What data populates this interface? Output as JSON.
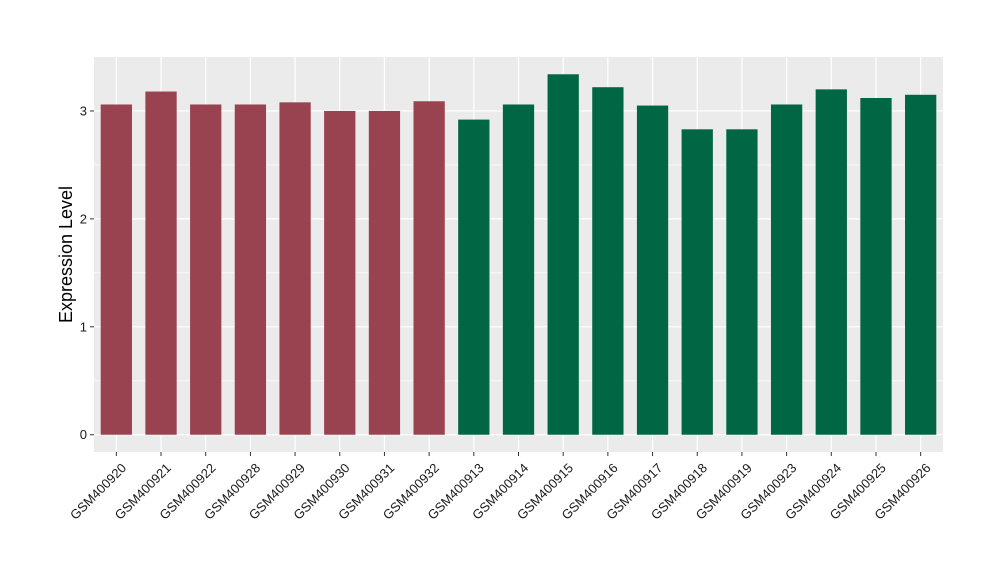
{
  "chart_data": {
    "type": "bar",
    "title": "",
    "xlabel": "",
    "ylabel": "Expression Level",
    "ylim": [
      -0.16,
      3.5
    ],
    "yticks": [
      0,
      1,
      2,
      3
    ],
    "grid": true,
    "legend": "none",
    "categories": [
      "GSM400920",
      "GSM400921",
      "GSM400922",
      "GSM400928",
      "GSM400929",
      "GSM400930",
      "GSM400931",
      "GSM400932",
      "GSM400913",
      "GSM400914",
      "GSM400915",
      "GSM400916",
      "GSM400917",
      "GSM400918",
      "GSM400919",
      "GSM400923",
      "GSM400924",
      "GSM400925",
      "GSM400926"
    ],
    "values": [
      3.06,
      3.18,
      3.06,
      3.06,
      3.08,
      3.0,
      3.0,
      3.09,
      2.92,
      3.06,
      3.34,
      3.22,
      3.05,
      2.83,
      2.83,
      3.06,
      3.2,
      3.12,
      3.15
    ],
    "groups": [
      0,
      0,
      0,
      0,
      0,
      0,
      0,
      0,
      1,
      1,
      1,
      1,
      1,
      1,
      1,
      1,
      1,
      1,
      1
    ],
    "group_colors": [
      "#9a4350",
      "#006644"
    ],
    "panel_background": "#ebebeb",
    "grid_color": "#ffffff"
  }
}
